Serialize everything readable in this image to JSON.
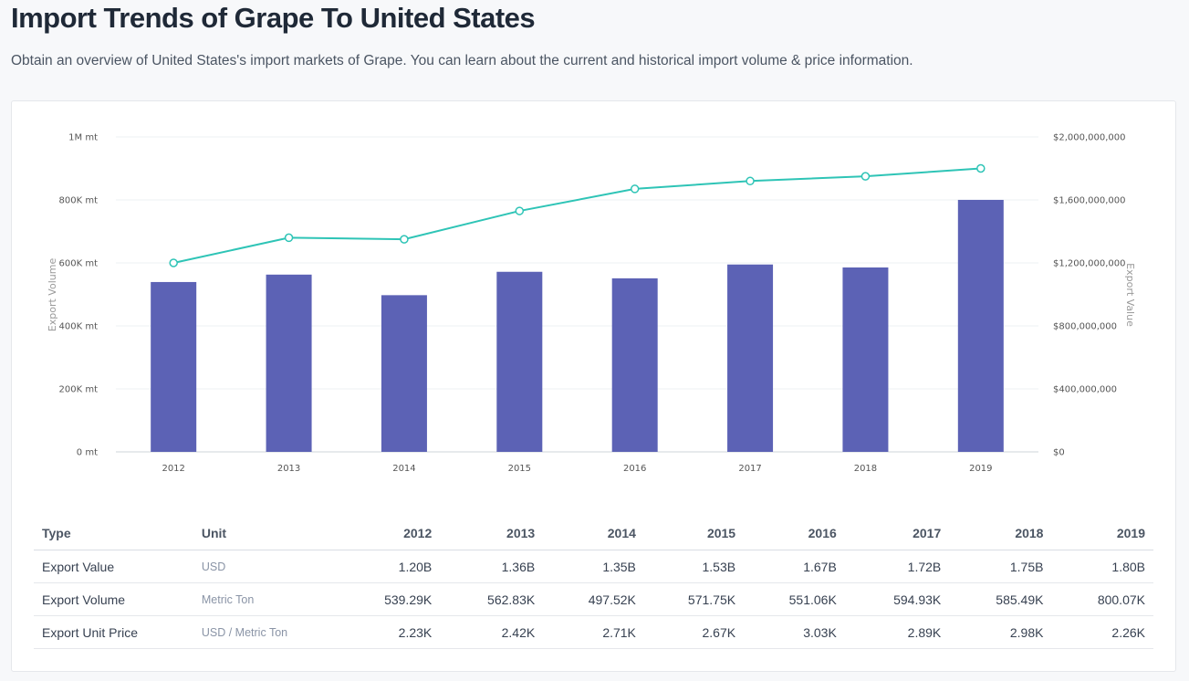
{
  "page": {
    "title": "Import Trends of Grape To United States",
    "subtitle": "Obtain an overview of United States's import markets of Grape. You can learn about the current and historical import volume & price information."
  },
  "chart_data": {
    "type": "bar",
    "categories": [
      "2012",
      "2013",
      "2014",
      "2015",
      "2016",
      "2017",
      "2018",
      "2019"
    ],
    "series": [
      {
        "type": "bar",
        "axis": "left",
        "color": "#5c62b5",
        "values": [
          539290,
          562830,
          497520,
          571750,
          551060,
          594930,
          585490,
          800070
        ]
      },
      {
        "type": "line",
        "axis": "right",
        "color": "#2ec4b6",
        "values": [
          1200000000,
          1360000000,
          1350000000,
          1530000000,
          1670000000,
          1720000000,
          1750000000,
          1800000000
        ]
      }
    ],
    "y_left": {
      "label": "Export Volume",
      "ylim": [
        0,
        1000000
      ],
      "ticks": [
        0,
        200000,
        400000,
        600000,
        800000,
        1000000
      ],
      "tick_labels": [
        "0 mt",
        "200K mt",
        "400K mt",
        "600K mt",
        "800K mt",
        "1M mt"
      ]
    },
    "y_right": {
      "label": "Export Value",
      "ylim": [
        0,
        2000000000
      ],
      "ticks": [
        0,
        400000000,
        800000000,
        1200000000,
        1600000000,
        2000000000
      ],
      "tick_labels": [
        "$0",
        "$400,000,000",
        "$800,000,000",
        "$1,200,000,000",
        "$1,600,000,000",
        "$2,000,000,000"
      ]
    },
    "grid": true,
    "legend": "none"
  },
  "table": {
    "headers": [
      "Type",
      "Unit",
      "2012",
      "2013",
      "2014",
      "2015",
      "2016",
      "2017",
      "2018",
      "2019"
    ],
    "rows": [
      {
        "type": "Export Value",
        "unit": "USD",
        "values": [
          "1.20B",
          "1.36B",
          "1.35B",
          "1.53B",
          "1.67B",
          "1.72B",
          "1.75B",
          "1.80B"
        ]
      },
      {
        "type": "Export Volume",
        "unit": "Metric Ton",
        "values": [
          "539.29K",
          "562.83K",
          "497.52K",
          "571.75K",
          "551.06K",
          "594.93K",
          "585.49K",
          "800.07K"
        ]
      },
      {
        "type": "Export Unit Price",
        "unit": "USD / Metric Ton",
        "values": [
          "2.23K",
          "2.42K",
          "2.71K",
          "2.67K",
          "3.03K",
          "2.89K",
          "2.98K",
          "2.26K"
        ]
      }
    ]
  }
}
